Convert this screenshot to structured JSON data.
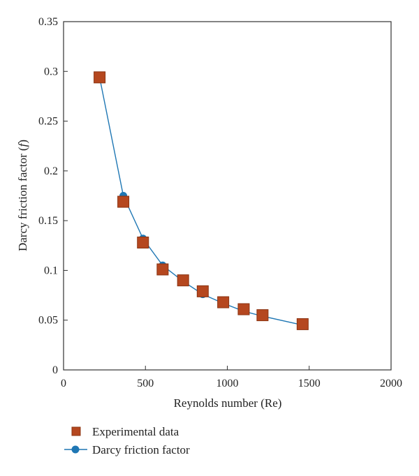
{
  "chart_data": {
    "type": "scatter",
    "title": "",
    "xlabel": "Reynolds number (Re)",
    "ylabel": "Darcy friction factor (f)",
    "ylabel_parts": {
      "prefix": "Darcy friction factor (",
      "var": "f",
      "suffix": ")"
    },
    "xlim": [
      0,
      2000
    ],
    "ylim": [
      0,
      0.35
    ],
    "xticks": [
      0,
      500,
      1000,
      1500,
      2000
    ],
    "yticks": [
      0,
      0.05,
      0.1,
      0.15,
      0.2,
      0.25,
      0.3,
      0.35
    ],
    "xtick_labels": [
      "0",
      "500",
      "1000",
      "1500",
      "2000"
    ],
    "ytick_labels": [
      "0",
      "0.05",
      "0.1",
      "0.15",
      "0.2",
      "0.25",
      "0.3",
      "0.35"
    ],
    "grid": false,
    "legend_position": "bottom-left, below plot",
    "series": [
      {
        "name": "Darcy friction factor",
        "kind": "line-with-markers",
        "marker": "circle",
        "color": "#1f77b4",
        "x": [
          220,
          365,
          485,
          605,
          730,
          850,
          975,
          1100,
          1215,
          1460
        ],
        "y": [
          0.294,
          0.175,
          0.132,
          0.105,
          0.089,
          0.076,
          0.067,
          0.059,
          0.054,
          0.045
        ]
      },
      {
        "name": "Experimental data",
        "kind": "scatter",
        "marker": "square",
        "color": "#b5471f",
        "edge_color": "#8b3412",
        "x": [
          220,
          365,
          485,
          605,
          730,
          850,
          975,
          1100,
          1215,
          1460
        ],
        "y": [
          0.294,
          0.169,
          0.128,
          0.101,
          0.09,
          0.079,
          0.068,
          0.061,
          0.055,
          0.046
        ]
      }
    ],
    "legend": [
      {
        "label": "Experimental data",
        "series": 1
      },
      {
        "label": "Darcy friction factor",
        "series": 0
      }
    ]
  }
}
